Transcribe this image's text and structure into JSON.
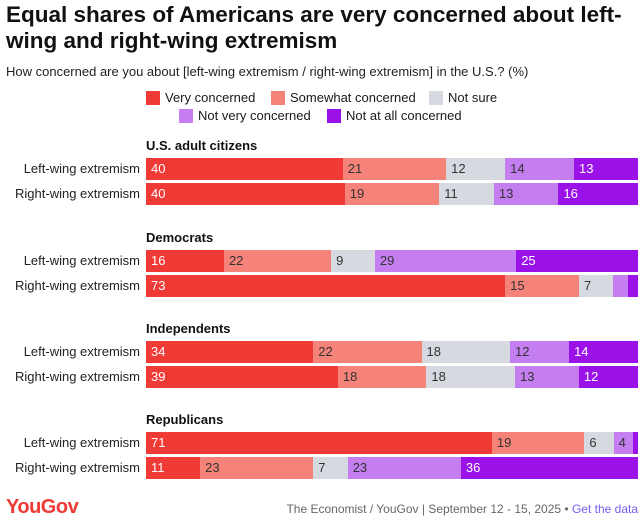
{
  "title": "Equal shares of Americans are very concerned about left-wing and right-wing extremism",
  "subtitle": "How concerned are you about [left-wing extremism / right-wing extremism] in the U.S.? (%)",
  "chart_data": {
    "type": "bar",
    "orientation": "horizontal-stacked",
    "title": "Equal shares of Americans are very concerned about left-wing and right-wing extremism",
    "subtitle": "How concerned are you about [left-wing extremism / right-wing extremism] in the U.S.? (%)",
    "xlim": [
      0,
      100
    ],
    "legend": [
      {
        "name": "Very concerned",
        "color": "#f03a36"
      },
      {
        "name": "Somewhat concerned",
        "color": "#f5837a"
      },
      {
        "name": "Not sure",
        "color": "#d6d9e0"
      },
      {
        "name": "Not very concerned",
        "color": "#c47ef0"
      },
      {
        "name": "Not at all concerned",
        "color": "#9b12e8"
      }
    ],
    "groups": [
      {
        "name": "U.S. adult citizens",
        "rows": [
          {
            "label": "Left-wing extremism",
            "values": [
              40,
              21,
              12,
              14,
              13
            ]
          },
          {
            "label": "Right-wing extremism",
            "values": [
              40,
              19,
              11,
              13,
              16
            ]
          }
        ]
      },
      {
        "name": "Democrats",
        "rows": [
          {
            "label": "Left-wing extremism",
            "values": [
              16,
              22,
              9,
              29,
              25
            ]
          },
          {
            "label": "Right-wing extremism",
            "values": [
              73,
              15,
              7,
              3,
              2
            ]
          }
        ]
      },
      {
        "name": "Independents",
        "rows": [
          {
            "label": "Left-wing extremism",
            "values": [
              34,
              22,
              18,
              12,
              14
            ]
          },
          {
            "label": "Right-wing extremism",
            "values": [
              39,
              18,
              18,
              13,
              12
            ]
          }
        ]
      },
      {
        "name": "Republicans",
        "rows": [
          {
            "label": "Left-wing extremism",
            "values": [
              71,
              19,
              6,
              4,
              1
            ]
          },
          {
            "label": "Right-wing extremism",
            "values": [
              11,
              23,
              7,
              23,
              36
            ]
          }
        ]
      }
    ]
  },
  "footer": {
    "logo": "YouGov",
    "source": "The Economist / YouGov | September 12 - 15, 2025 • ",
    "link": "Get the data"
  }
}
